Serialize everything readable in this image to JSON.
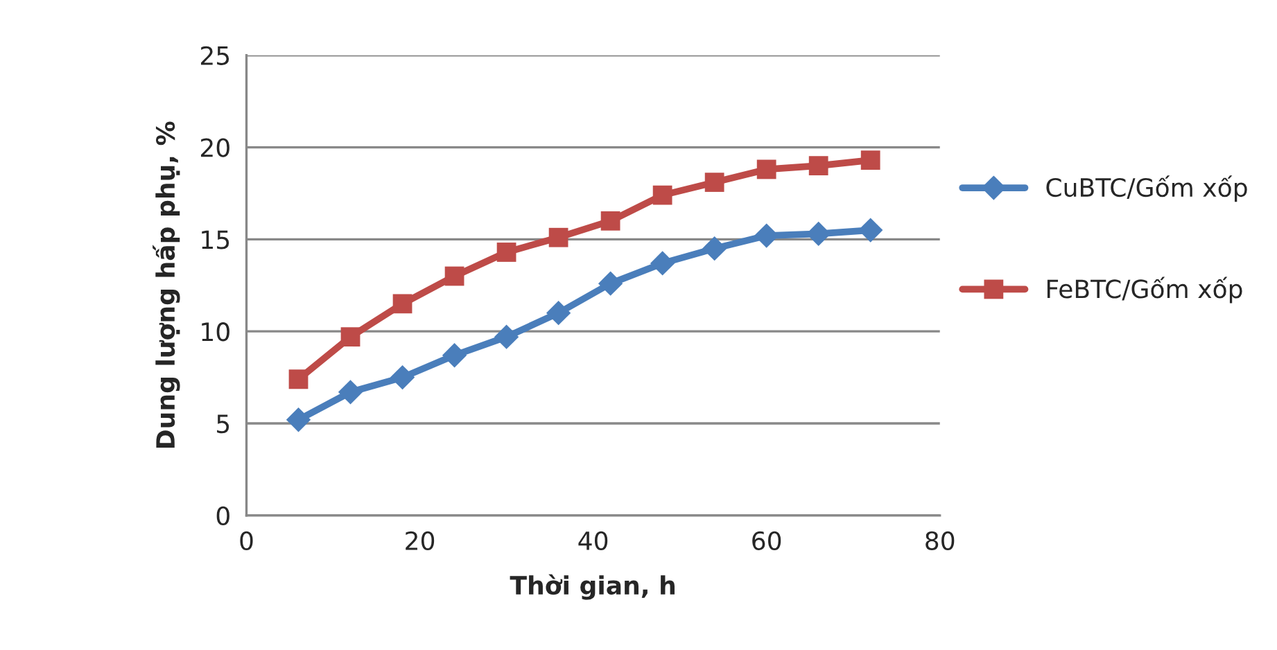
{
  "chart_data": {
    "type": "line",
    "xlabel": "Thời gian, h",
    "ylabel": "Dung lượng hấp phụ, %",
    "x": [
      6,
      12,
      18,
      24,
      30,
      36,
      42,
      48,
      54,
      60,
      66,
      72
    ],
    "series": [
      {
        "name": "CuBTC/Gốm xốp",
        "color": "#4a7ebb",
        "marker": "diamond",
        "values": [
          5.2,
          6.7,
          7.5,
          8.7,
          9.7,
          11,
          12.6,
          13.7,
          14.5,
          15.2,
          15.3,
          15.5
        ]
      },
      {
        "name": "FeBTC/Gốm xốp",
        "color": "#be4b48",
        "marker": "square",
        "values": [
          7.4,
          9.7,
          11.5,
          13,
          14.3,
          15.1,
          16,
          17.4,
          18.1,
          18.8,
          19,
          19.3
        ]
      }
    ],
    "xlim": [
      0,
      80
    ],
    "xticks": [
      0,
      20,
      40,
      60,
      80
    ],
    "ylim": [
      0,
      25
    ],
    "yticks": [
      0,
      5,
      10,
      15,
      20,
      25
    ],
    "grid": "y",
    "legend": "right",
    "line_style": "solid"
  }
}
